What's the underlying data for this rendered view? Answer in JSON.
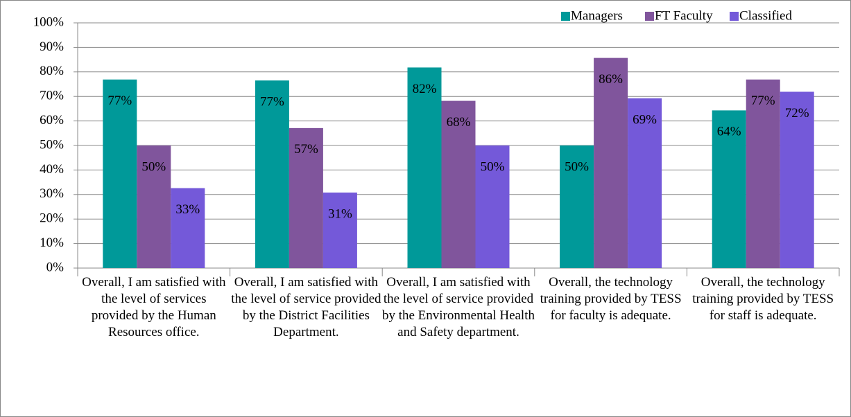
{
  "chart_data": {
    "type": "bar",
    "categories": [
      "Overall, I am satisfied with the level of services provided by the Human Resources office.",
      "Overall, I am satisfied with the level of service provided by the District Facilities Department.",
      "Overall, I am satisfied with the level of service provided by the Environmental Health and Safety department.",
      "Overall, the technology training provided by TESS for faculty is adequate.",
      "Overall, the technology training provided by TESS for staff is adequate."
    ],
    "series": [
      {
        "name": "Managers",
        "color": "#009999",
        "values": [
          76.9,
          76.5,
          81.8,
          50,
          64.3
        ],
        "value_labels": [
          "77%",
          "77%",
          "82%",
          "50%",
          "64%"
        ]
      },
      {
        "name": "FT Faculty",
        "color": "#80559c",
        "values": [
          50,
          57.1,
          68.2,
          85.7,
          76.9
        ],
        "value_labels": [
          "50%",
          "57%",
          "68%",
          "86%",
          "77%"
        ]
      },
      {
        "name": "Classified",
        "color": "#7459d9",
        "values": [
          32.6,
          30.8,
          50,
          69.2,
          71.9
        ],
        "value_labels": [
          "33%",
          "31%",
          "50%",
          "69%",
          "72%"
        ]
      }
    ],
    "ylim": [
      0,
      100
    ],
    "yticks": [
      {
        "value": 0,
        "label": "0%"
      },
      {
        "value": 10,
        "label": "10%"
      },
      {
        "value": 20,
        "label": "20%"
      },
      {
        "value": 30,
        "label": "30%"
      },
      {
        "value": 40,
        "label": "40%"
      },
      {
        "value": 50,
        "label": "50%"
      },
      {
        "value": 60,
        "label": "60%"
      },
      {
        "value": 70,
        "label": "70%"
      },
      {
        "value": 80,
        "label": "80%"
      },
      {
        "value": 90,
        "label": "90%"
      },
      {
        "value": 100,
        "label": "100%"
      }
    ],
    "grid": true,
    "legend": "top-right"
  }
}
